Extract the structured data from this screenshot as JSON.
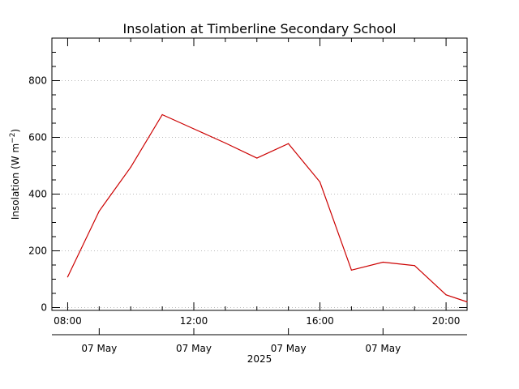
{
  "chart_data": {
    "type": "line",
    "title": "Insolation at Timberline Secondary School",
    "ylabel_main": "Insolation (W m",
    "ylabel_sup": "−2",
    "ylabel_close": ")",
    "xlabel": "",
    "ylim": [
      -10,
      950
    ],
    "xlim": [
      "07:30",
      "20:40"
    ],
    "grid": "horizontal dotted",
    "y_ticks": [
      0,
      200,
      400,
      600,
      800
    ],
    "y_tick_labels": [
      "0",
      "200",
      "400",
      "600",
      "800"
    ],
    "x_ticks": [
      "08:00",
      "12:00",
      "16:00",
      "20:00"
    ],
    "x_tick_labels": [
      "08:00",
      "12:00",
      "16:00",
      "20:00"
    ],
    "date_axis": {
      "tick_times": [
        "09:00",
        "12:00",
        "15:00",
        "18:00"
      ],
      "labels": [
        "07 May",
        "07 May",
        "07 May",
        "07 May"
      ],
      "year_label": "2025"
    },
    "series": [
      {
        "color": "#cc0000",
        "x": [
          "08:00",
          "09:00",
          "10:00",
          "11:00",
          "12:00",
          "13:00",
          "14:00",
          "15:00",
          "16:00",
          "17:00",
          "18:00",
          "19:00",
          "20:00",
          "20:40"
        ],
        "y": [
          108,
          340,
          495,
          680,
          630,
          580,
          527,
          578,
          443,
          132,
          160,
          148,
          45,
          20
        ]
      }
    ]
  }
}
